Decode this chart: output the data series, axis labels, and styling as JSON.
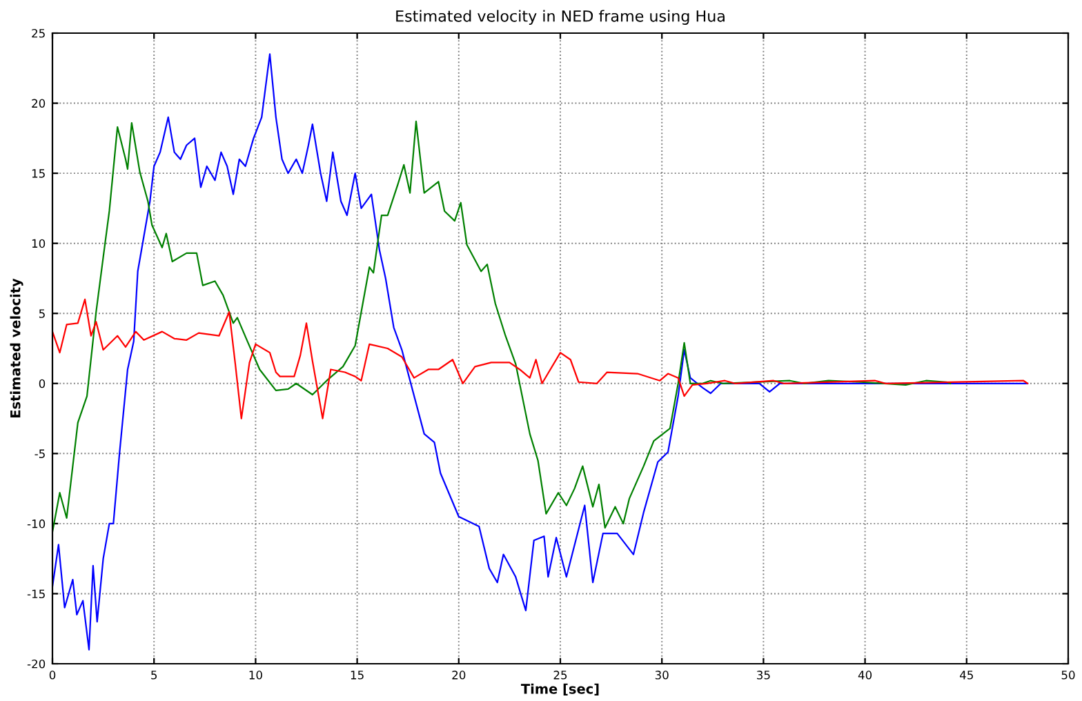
{
  "chart_data": {
    "type": "line",
    "title": "Estimated velocity in NED frame using Hua",
    "xlabel": "Time [sec]",
    "ylabel": "Estimated velocity",
    "xlim": [
      0,
      50
    ],
    "ylim": [
      -20,
      25
    ],
    "xticks": [
      0,
      5,
      10,
      15,
      20,
      25,
      30,
      35,
      40,
      45,
      50
    ],
    "yticks": [
      -20,
      -15,
      -10,
      -5,
      0,
      5,
      10,
      15,
      20,
      25
    ],
    "grid": true,
    "legend": false,
    "marker": "none",
    "line_style": "solid",
    "series": [
      {
        "color": "#0000ff",
        "x": [
          0,
          0.3,
          0.6,
          1.0,
          1.2,
          1.5,
          1.8,
          2.0,
          2.2,
          2.5,
          2.8,
          3.0,
          3.3,
          3.7,
          4.0,
          4.2,
          4.5,
          4.8,
          5.0,
          5.3,
          5.7,
          6.0,
          6.3,
          6.6,
          7.0,
          7.3,
          7.6,
          8.0,
          8.3,
          8.6,
          8.9,
          9.2,
          9.5,
          9.9,
          10.3,
          10.7,
          11.0,
          11.3,
          11.6,
          12.0,
          12.3,
          12.6,
          12.8,
          13.2,
          13.5,
          13.8,
          14.2,
          14.5,
          14.9,
          15.2,
          15.7,
          16.1,
          16.4,
          16.8,
          17.2,
          18.3,
          18.8,
          19.1,
          20.0,
          21.0,
          21.5,
          21.9,
          22.2,
          22.8,
          23.3,
          23.7,
          24.2,
          24.4,
          24.8,
          25.3,
          26.2,
          26.6,
          27.1,
          27.8,
          28.6,
          29.1,
          29.8,
          30.3,
          30.8,
          31.1,
          31.4,
          32.0,
          32.4,
          32.9,
          34.8,
          35.3,
          35.8,
          48.0
        ],
        "values": [
          -14.5,
          -11.5,
          -16,
          -14,
          -16.5,
          -15.5,
          -19,
          -13,
          -17,
          -12.5,
          -10,
          -10,
          -5,
          1,
          3,
          8,
          10.5,
          13,
          15.5,
          16.5,
          19,
          16.5,
          16,
          17,
          17.5,
          14,
          15.5,
          14.5,
          16.5,
          15.5,
          13.5,
          16,
          15.5,
          17.5,
          19,
          23.5,
          19,
          16,
          15,
          16,
          15,
          17,
          18.5,
          15,
          13,
          16.5,
          13,
          12,
          15,
          12.5,
          13.5,
          9.5,
          7.5,
          4,
          2.4,
          -3.6,
          -4.2,
          -6.4,
          -9.5,
          -10.2,
          -13.2,
          -14.2,
          -12.2,
          -13.8,
          -16.2,
          -11.2,
          -10.9,
          -13.8,
          -11.0,
          -13.8,
          -8.7,
          -14.2,
          -10.7,
          -10.7,
          -12.2,
          -9.2,
          -5.6,
          -4.9,
          -0.9,
          2.4,
          0.4,
          -0.3,
          -0.7,
          0,
          0,
          -0.6,
          0,
          0
        ]
      },
      {
        "color": "#008000",
        "x": [
          0,
          0.36,
          0.7,
          1.25,
          1.7,
          2.15,
          2.5,
          2.8,
          3.2,
          3.6,
          3.7,
          3.9,
          4.3,
          4.7,
          4.9,
          5.4,
          5.6,
          5.9,
          6.6,
          7.1,
          7.4,
          8.0,
          8.4,
          8.9,
          9.1,
          9.6,
          10.2,
          11.0,
          11.6,
          12.0,
          12.8,
          13.5,
          14.3,
          14.9,
          15.6,
          15.8,
          16.2,
          16.5,
          17.0,
          17.3,
          17.6,
          17.9,
          18.3,
          19.0,
          19.3,
          19.8,
          20.1,
          20.4,
          21.1,
          21.4,
          21.8,
          22.3,
          22.8,
          23.5,
          23.9,
          24.3,
          24.9,
          25.3,
          25.7,
          26.1,
          26.6,
          26.9,
          27.2,
          27.7,
          28.1,
          28.4,
          29.1,
          29.6,
          30.4,
          30.8,
          31.1,
          31.4,
          32.0,
          32.4,
          33.0,
          36.3,
          37.0,
          38.2,
          39.8,
          42.0,
          43.0,
          44.0,
          44.2
        ],
        "values": [
          -10.6,
          -7.8,
          -9.6,
          -2.8,
          -0.9,
          5.1,
          9.0,
          12.3,
          18.3,
          16,
          15.3,
          18.6,
          15.1,
          13,
          11.3,
          9.7,
          10.7,
          8.7,
          9.3,
          9.3,
          7,
          7.3,
          6.3,
          4.3,
          4.7,
          3,
          1,
          -0.5,
          -0.4,
          0,
          -0.8,
          0.2,
          1.2,
          2.7,
          8.3,
          7.9,
          12,
          12,
          14.2,
          15.6,
          13.6,
          18.7,
          13.6,
          14.4,
          12.3,
          11.6,
          12.9,
          9.9,
          8,
          8.5,
          5.7,
          3.4,
          1.4,
          -3.6,
          -5.5,
          -9.3,
          -7.8,
          -8.7,
          -7.5,
          -5.9,
          -8.8,
          -7.2,
          -10.3,
          -8.8,
          -10,
          -8.2,
          -5.9,
          -4.1,
          -3.2,
          0,
          2.9,
          0,
          0,
          0.2,
          0,
          0.2,
          0,
          0.2,
          0.1,
          -0.1,
          0.2,
          0.1,
          0
        ]
      },
      {
        "color": "#ff0000",
        "x": [
          0,
          0.36,
          0.7,
          1.25,
          1.6,
          1.9,
          2.15,
          2.5,
          3.2,
          3.6,
          4.1,
          4.5,
          5.4,
          6.0,
          6.6,
          7.2,
          8.2,
          8.7,
          9.0,
          9.3,
          9.7,
          10.0,
          10.7,
          11.0,
          11.2,
          11.9,
          12.2,
          12.5,
          12.8,
          13.3,
          13.7,
          14.4,
          14.9,
          15.2,
          15.6,
          16.5,
          17.2,
          17.8,
          18.5,
          19.0,
          19.7,
          20.2,
          20.8,
          21.6,
          22.5,
          23.0,
          23.5,
          23.8,
          24.1,
          25.0,
          25.5,
          25.9,
          26.8,
          27.3,
          28.8,
          29.9,
          30.3,
          30.8,
          31.1,
          31.5,
          32.2,
          33.1,
          33.6,
          35.5,
          36.0,
          40.5,
          41.0,
          47.8,
          48.0
        ],
        "values": [
          3.7,
          2.2,
          4.2,
          4.3,
          6.0,
          3.4,
          4.4,
          2.4,
          3.4,
          2.6,
          3.7,
          3.1,
          3.7,
          3.2,
          3.1,
          3.6,
          3.4,
          5.1,
          1.4,
          -2.5,
          1.5,
          2.8,
          2.2,
          0.8,
          0.5,
          0.5,
          2,
          4.3,
          1.6,
          -2.5,
          1,
          0.8,
          0.5,
          0.2,
          2.8,
          2.5,
          1.9,
          0.4,
          1,
          1,
          1.7,
          0,
          1.2,
          1.5,
          1.5,
          1,
          0.4,
          1.7,
          0,
          2.2,
          1.7,
          0.1,
          0,
          0.8,
          0.7,
          0.2,
          0.7,
          0.4,
          -0.9,
          -0.1,
          0,
          0.2,
          0,
          0.2,
          0,
          0.2,
          0,
          0.2,
          0
        ]
      }
    ]
  }
}
